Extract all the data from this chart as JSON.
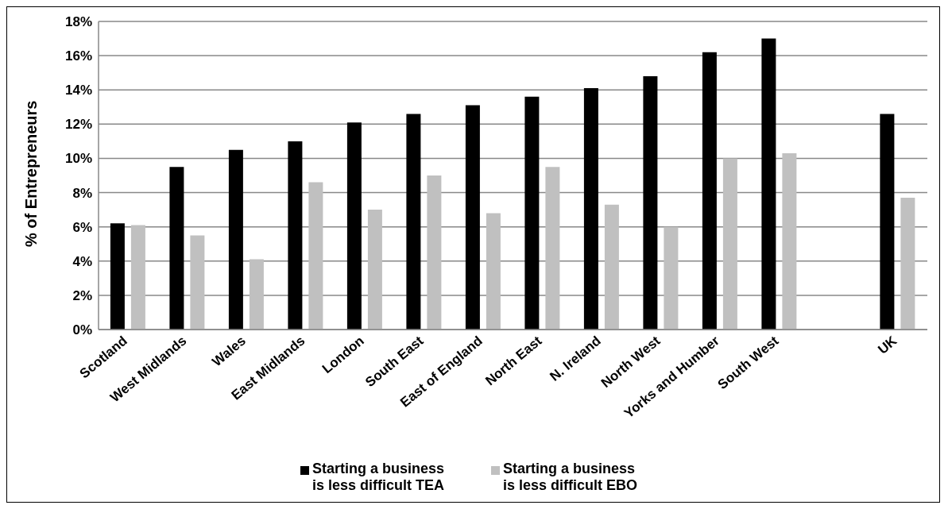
{
  "chart_data": {
    "type": "bar",
    "ylabel": "% of Entrepreneurs",
    "categories": [
      "Scotland",
      "West Midlands",
      "Wales",
      "East Midlands",
      "London",
      "South East",
      "East of England",
      "North East",
      "N. Ireland",
      "North West",
      "Yorks and Humber",
      "South West",
      null,
      "UK"
    ],
    "series": [
      {
        "name": "Starting a business is less difficult TEA",
        "color": "#000000",
        "values": [
          6.2,
          9.5,
          10.5,
          11.0,
          12.1,
          12.6,
          13.1,
          13.6,
          14.1,
          14.8,
          16.2,
          17.0,
          null,
          12.6
        ]
      },
      {
        "name": "Starting a business is less difficult EBO",
        "color": "#c0c0c0",
        "values": [
          6.1,
          5.5,
          4.1,
          8.6,
          7.0,
          9.0,
          6.8,
          9.5,
          7.3,
          6.0,
          10.0,
          10.3,
          null,
          7.7
        ]
      }
    ],
    "ylim": [
      0,
      18
    ],
    "yticks": [
      {
        "value": 0,
        "label": "0%"
      },
      {
        "value": 2,
        "label": "2%"
      },
      {
        "value": 4,
        "label": "4%"
      },
      {
        "value": 6,
        "label": "6%"
      },
      {
        "value": 8,
        "label": "8%"
      },
      {
        "value": 10,
        "label": "10%"
      },
      {
        "value": 12,
        "label": "12%"
      },
      {
        "value": 14,
        "label": "14%"
      },
      {
        "value": 16,
        "label": "16%"
      },
      {
        "value": 18,
        "label": "18%"
      }
    ],
    "grid": "y",
    "legend": "bottom"
  }
}
